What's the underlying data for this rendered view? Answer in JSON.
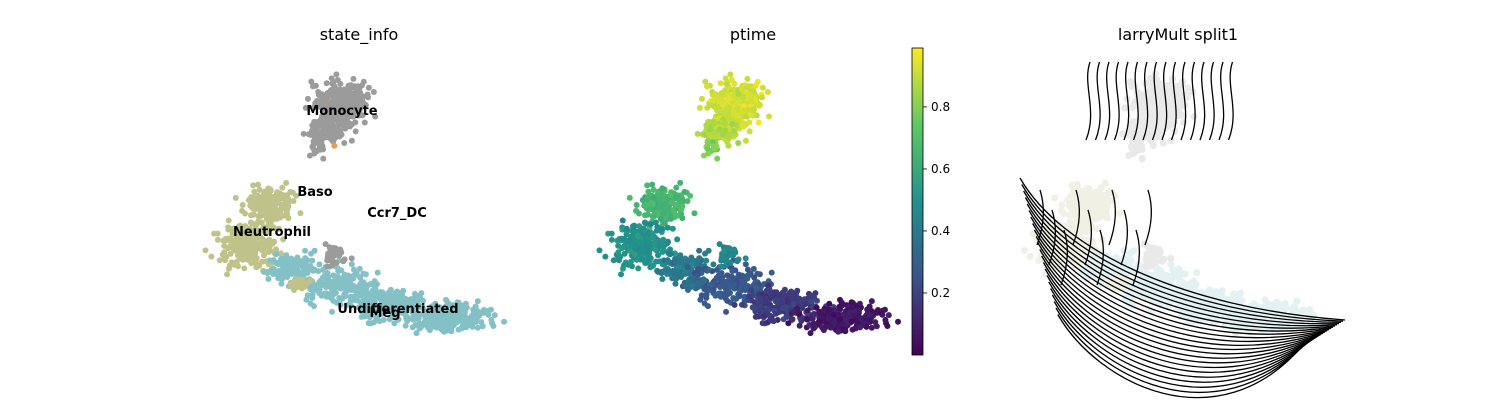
{
  "chart_data": [
    {
      "type": "scatter",
      "title": "state_info",
      "xlabel": "",
      "ylabel": "",
      "legend_placement": "on data",
      "grid": false,
      "categories": [
        {
          "name": "Monocyte",
          "color": "#9b9b9b"
        },
        {
          "name": "Baso",
          "color": "#bfc38a"
        },
        {
          "name": "Ccr7_DC",
          "color": "#9b9b9b"
        },
        {
          "name": "Neutrophil",
          "color": "#bfc38a"
        },
        {
          "name": "Undifferentiated",
          "color": "#83c1c6"
        },
        {
          "name": "Meg",
          "color": "#83c1c6"
        }
      ]
    },
    {
      "type": "scatter",
      "title": "ptime",
      "xlabel": "",
      "ylabel": "",
      "grid": false,
      "colorbar": {
        "colormap": "viridis",
        "range": [
          0.0,
          0.99
        ],
        "ticks": [
          0.2,
          0.4,
          0.6,
          0.8
        ],
        "tick_labels": [
          "0.2",
          "0.4",
          "0.6",
          "0.8"
        ]
      }
    },
    {
      "type": "scatter",
      "title": "larryMult split1",
      "xlabel": "",
      "ylabel": "",
      "grid": false,
      "overlay": "velocity streamlines"
    }
  ]
}
